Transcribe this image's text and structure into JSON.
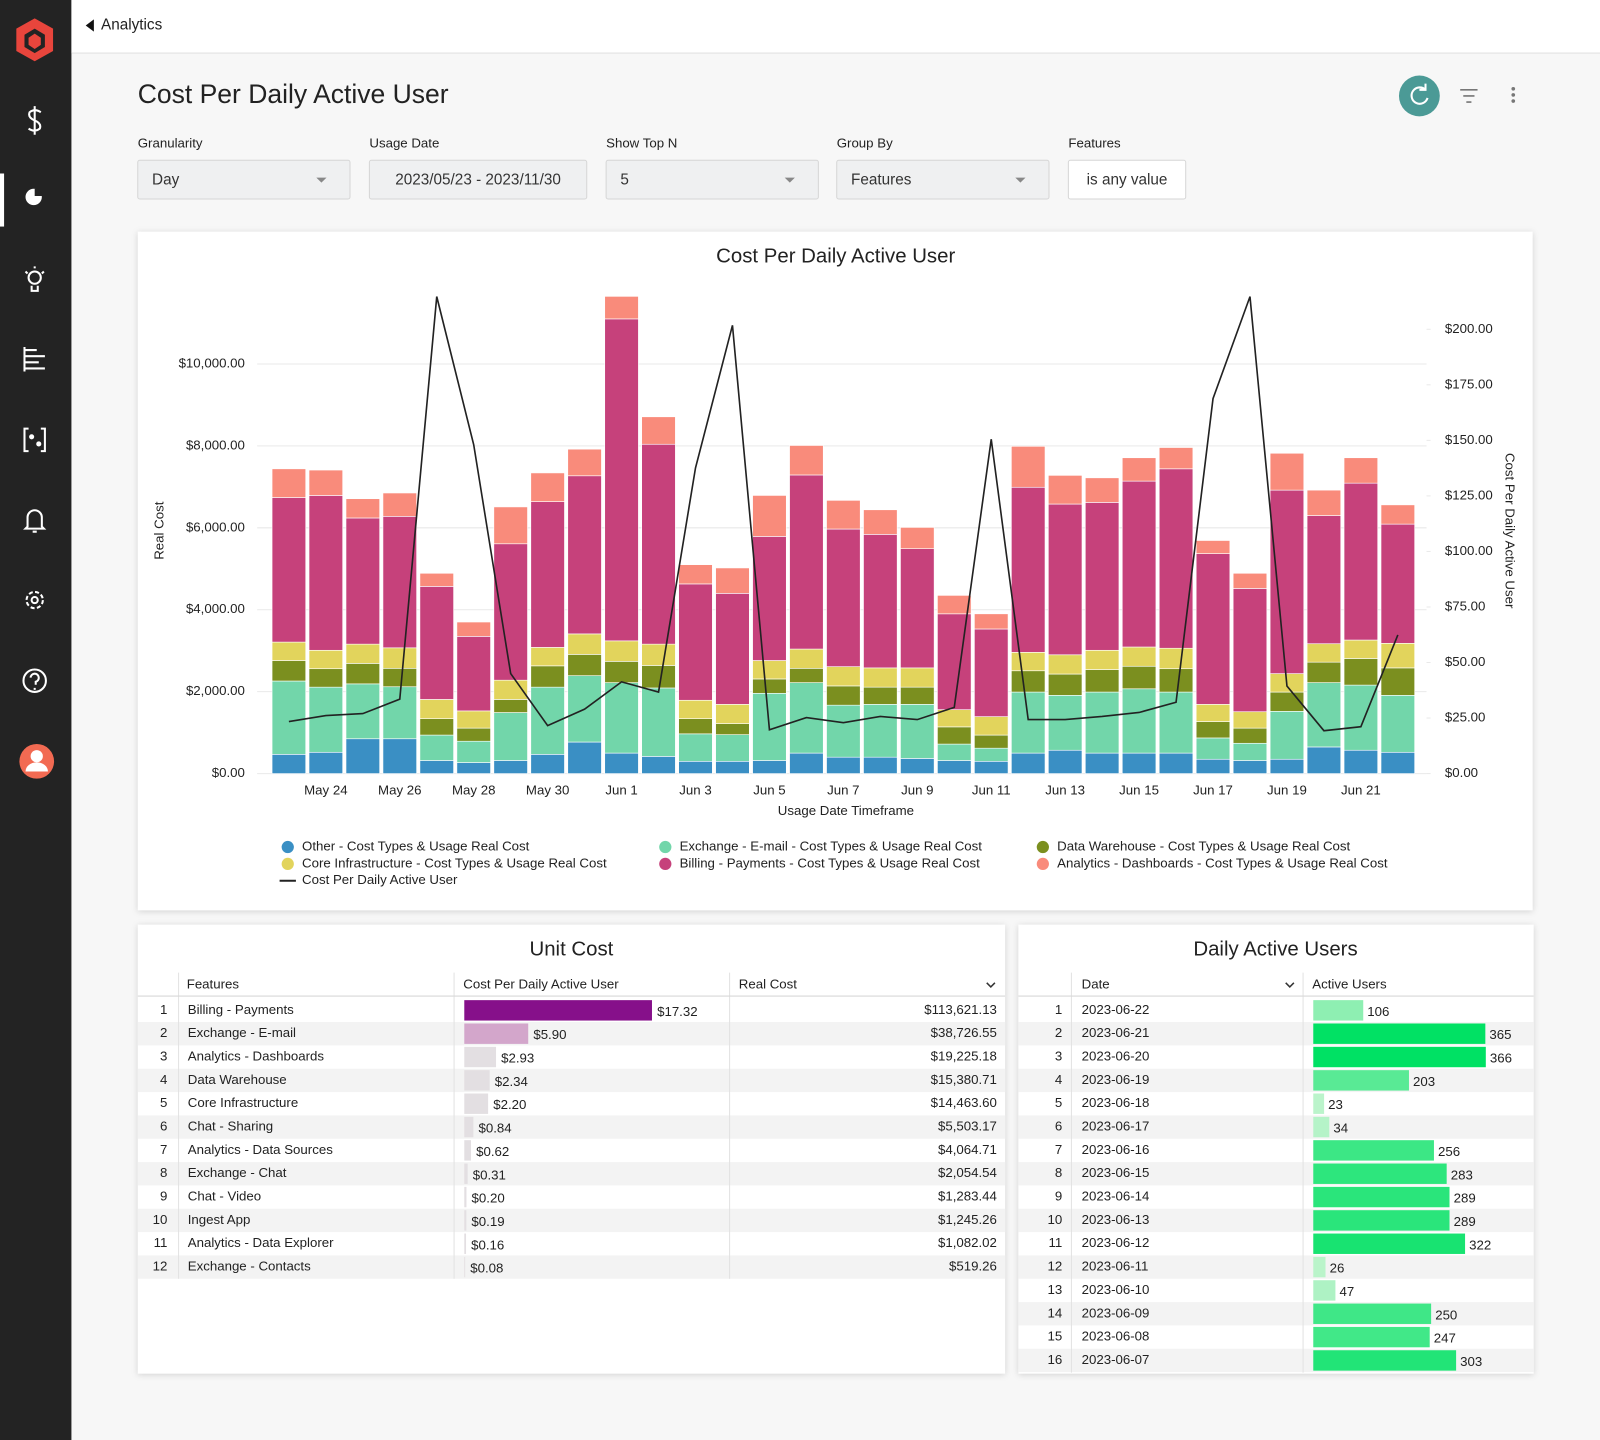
{
  "header": {
    "back": "Analytics"
  },
  "page": {
    "title": "Cost Per Daily Active User"
  },
  "filters": [
    {
      "label": "Granularity",
      "value": "Day"
    },
    {
      "label": "Usage Date",
      "value": "2023/05/23 - 2023/11/30"
    },
    {
      "label": "Show Top N",
      "value": "5"
    },
    {
      "label": "Group By",
      "value": "Features"
    },
    {
      "label": "Features",
      "value": "is any value"
    }
  ],
  "chart_data": {
    "type": "bar",
    "stacked": true,
    "title": "Cost Per Daily Active User",
    "xlabel": "Usage Date Timeframe",
    "ylabel": "Real Cost",
    "y2label": "Cost Per Daily Active User",
    "categories": [
      null,
      "May 24",
      null,
      "May 26",
      null,
      "May 28",
      null,
      "May 30",
      null,
      "Jun 1",
      null,
      "Jun 3",
      null,
      "Jun 5",
      null,
      "Jun 7",
      null,
      "Jun 9",
      null,
      "Jun 11",
      null,
      "Jun 13",
      null,
      "Jun 15",
      null,
      "Jun 17",
      null,
      "Jun 19",
      null,
      "Jun 21",
      null
    ],
    "series": [
      {
        "name": "Other - Cost Types & Usage Real Cost",
        "color": "#3a8fc4",
        "values": [
          470,
          520,
          850,
          850,
          320,
          270,
          320,
          470,
          770,
          500,
          420,
          300,
          300,
          320,
          500,
          400,
          400,
          370,
          320,
          300,
          500,
          570,
          500,
          500,
          500,
          350,
          320,
          350,
          650,
          570,
          520
        ]
      },
      {
        "name": "Exchange - E-mail - Cost Types & Usage Real Cost",
        "color": "#72d6aa",
        "values": [
          1790,
          1590,
          1340,
          1270,
          620,
          520,
          1170,
          1640,
          1620,
          1720,
          1670,
          670,
          650,
          1640,
          1720,
          1270,
          1290,
          1320,
          400,
          320,
          1490,
          1340,
          1490,
          1570,
          1490,
          520,
          420,
          1170,
          1570,
          1590,
          1390
        ]
      },
      {
        "name": "Data Warehouse - Cost Types & Usage Real Cost",
        "color": "#7b8f1f",
        "values": [
          500,
          450,
          500,
          450,
          400,
          320,
          320,
          520,
          520,
          520,
          550,
          370,
          270,
          350,
          350,
          470,
          420,
          420,
          420,
          320,
          520,
          520,
          550,
          550,
          570,
          400,
          370,
          470,
          500,
          650,
          670
        ]
      },
      {
        "name": "Core Infrastructure - Cost Types & Usage Real Cost",
        "color": "#e2d45c",
        "values": [
          450,
          450,
          470,
          500,
          470,
          420,
          470,
          450,
          500,
          500,
          520,
          450,
          470,
          450,
          470,
          470,
          470,
          470,
          420,
          450,
          450,
          470,
          470,
          470,
          500,
          420,
          400,
          450,
          450,
          450,
          600
        ]
      },
      {
        "name": "Billing - Payments - Cost Types & Usage Real Cost",
        "color": "#c6417b",
        "values": [
          3530,
          3780,
          3080,
          3210,
          2760,
          1820,
          3330,
          3560,
          3860,
          7860,
          4880,
          2840,
          2710,
          3030,
          4250,
          3360,
          3260,
          2910,
          2340,
          2140,
          4030,
          3680,
          3610,
          4050,
          4380,
          3680,
          3010,
          4480,
          3130,
          3830,
          2910
        ]
      },
      {
        "name": "Analytics - Dashboards - Cost Types & Usage Real Cost",
        "color": "#f98b7b",
        "values": [
          700,
          620,
          470,
          570,
          320,
          350,
          900,
          700,
          650,
          550,
          670,
          470,
          620,
          1000,
          720,
          700,
          600,
          520,
          450,
          370,
          1000,
          700,
          600,
          570,
          520,
          320,
          370,
          900,
          620,
          620,
          470
        ]
      },
      {
        "name": "Cost Per Daily Active User",
        "color": "#222222",
        "type": "line",
        "axis": "y2",
        "values": [
          23.4,
          26.1,
          27,
          33.5,
          214.7,
          148,
          45,
          21.6,
          29,
          41.3,
          36.7,
          137.6,
          201.8,
          19.7,
          25.2,
          22.9,
          25.7,
          24.3,
          29.8,
          150.5,
          24.3,
          24.3,
          25.7,
          27.5,
          32.1,
          168.8,
          214.7,
          39.4,
          19.3,
          21.1,
          62.4
        ]
      }
    ],
    "ylim": [
      0,
      11660
    ],
    "yticks": [
      {
        "value": 0,
        "label": "$0.00"
      },
      {
        "value": 2000,
        "label": "$2,000.00"
      },
      {
        "value": 4000,
        "label": "$4,000.00"
      },
      {
        "value": 6000,
        "label": "$6,000.00"
      },
      {
        "value": 8000,
        "label": "$8,000.00"
      },
      {
        "value": 10000,
        "label": "$10,000.00"
      }
    ],
    "y2lim": [
      0,
      215
    ],
    "y2ticks": [
      {
        "value": 0,
        "label": "$0.00"
      },
      {
        "value": 25,
        "label": "$25.00"
      },
      {
        "value": 50,
        "label": "$50.00"
      },
      {
        "value": 75,
        "label": "$75.00"
      },
      {
        "value": 100,
        "label": "$100.00"
      },
      {
        "value": 125,
        "label": "$125.00"
      },
      {
        "value": 150,
        "label": "$150.00"
      },
      {
        "value": 175,
        "label": "$175.00"
      },
      {
        "value": 200,
        "label": "$200.00"
      }
    ],
    "grid": true,
    "legend": "bottom"
  },
  "unit_cost": {
    "title": "Unit Cost",
    "columns": [
      "Features",
      "Cost Per Daily Active User",
      "Real Cost"
    ],
    "bar_colors": [
      "#86108a",
      "#d3a6cb",
      "#e3dfe2"
    ],
    "rows": [
      {
        "index": 1,
        "feature": "Billing - Payments",
        "cpdau": 17.32,
        "cpdau_label": "$17.32",
        "real_cost": "$113,621.13"
      },
      {
        "index": 2,
        "feature": "Exchange - E-mail",
        "cpdau": 5.9,
        "cpdau_label": "$5.90",
        "real_cost": "$38,726.55"
      },
      {
        "index": 3,
        "feature": "Analytics - Dashboards",
        "cpdau": 2.93,
        "cpdau_label": "$2.93",
        "real_cost": "$19,225.18"
      },
      {
        "index": 4,
        "feature": "Data Warehouse",
        "cpdau": 2.34,
        "cpdau_label": "$2.34",
        "real_cost": "$15,380.71"
      },
      {
        "index": 5,
        "feature": "Core Infrastructure",
        "cpdau": 2.2,
        "cpdau_label": "$2.20",
        "real_cost": "$14,463.60"
      },
      {
        "index": 6,
        "feature": "Chat - Sharing",
        "cpdau": 0.84,
        "cpdau_label": "$0.84",
        "real_cost": "$5,503.17"
      },
      {
        "index": 7,
        "feature": "Analytics - Data Sources",
        "cpdau": 0.62,
        "cpdau_label": "$0.62",
        "real_cost": "$4,064.71"
      },
      {
        "index": 8,
        "feature": "Exchange - Chat",
        "cpdau": 0.31,
        "cpdau_label": "$0.31",
        "real_cost": "$2,054.54"
      },
      {
        "index": 9,
        "feature": "Chat - Video",
        "cpdau": 0.2,
        "cpdau_label": "$0.20",
        "real_cost": "$1,283.44"
      },
      {
        "index": 10,
        "feature": "Ingest App",
        "cpdau": 0.19,
        "cpdau_label": "$0.19",
        "real_cost": "$1,245.26"
      },
      {
        "index": 11,
        "feature": "Analytics - Data Explorer",
        "cpdau": 0.16,
        "cpdau_label": "$0.16",
        "real_cost": "$1,082.02"
      },
      {
        "index": 12,
        "feature": "Exchange - Contacts",
        "cpdau": 0.08,
        "cpdau_label": "$0.08",
        "real_cost": "$519.26"
      }
    ]
  },
  "daily_active_users": {
    "title": "Daily Active Users",
    "columns": [
      "Date",
      "Active Users"
    ],
    "rows": [
      {
        "index": 1,
        "date": "2023-06-22",
        "active_users": 106
      },
      {
        "index": 2,
        "date": "2023-06-21",
        "active_users": 365
      },
      {
        "index": 3,
        "date": "2023-06-20",
        "active_users": 366
      },
      {
        "index": 4,
        "date": "2023-06-19",
        "active_users": 203
      },
      {
        "index": 5,
        "date": "2023-06-18",
        "active_users": 23
      },
      {
        "index": 6,
        "date": "2023-06-17",
        "active_users": 34
      },
      {
        "index": 7,
        "date": "2023-06-16",
        "active_users": 256
      },
      {
        "index": 8,
        "date": "2023-06-15",
        "active_users": 283
      },
      {
        "index": 9,
        "date": "2023-06-14",
        "active_users": 289
      },
      {
        "index": 10,
        "date": "2023-06-13",
        "active_users": 289
      },
      {
        "index": 11,
        "date": "2023-06-12",
        "active_users": 322
      },
      {
        "index": 12,
        "date": "2023-06-11",
        "active_users": 26
      },
      {
        "index": 13,
        "date": "2023-06-10",
        "active_users": 47
      },
      {
        "index": 14,
        "date": "2023-06-09",
        "active_users": 250
      },
      {
        "index": 15,
        "date": "2023-06-08",
        "active_users": 247
      },
      {
        "index": 16,
        "date": "2023-06-07",
        "active_users": 303
      }
    ]
  }
}
